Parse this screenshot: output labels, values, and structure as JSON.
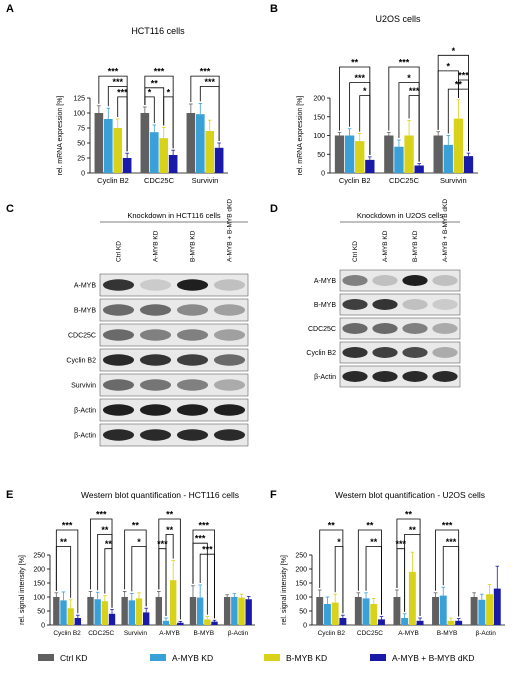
{
  "colors": {
    "ctrl": "#606060",
    "amyb": "#3aa0d8",
    "bmyb": "#d8d21a",
    "dkd": "#1a1aa8"
  },
  "legend": [
    {
      "label": "Ctrl KD",
      "color": "#606060"
    },
    {
      "label": "A-MYB KD",
      "color": "#3aa0d8"
    },
    {
      "label": "B-MYB KD",
      "color": "#d8d21a"
    },
    {
      "label": "A-MYB + B-MYB dKD",
      "color": "#1a1aa8"
    }
  ],
  "chart_data": [
    {
      "panel": "A",
      "type": "bar",
      "title": "HCT116 cells",
      "ylabel": "rel. mRNA expression [%]",
      "ylim": [
        0,
        125
      ],
      "yticks": [
        0,
        25,
        50,
        75,
        100,
        125
      ],
      "categories": [
        "Cyclin B2",
        "CDC25C",
        "Survivin"
      ],
      "series": [
        {
          "name": "Ctrl KD",
          "values": [
            100,
            100,
            100
          ],
          "errors": [
            12,
            10,
            15
          ]
        },
        {
          "name": "A-MYB KD",
          "values": [
            90,
            68,
            98
          ],
          "errors": [
            18,
            12,
            18
          ]
        },
        {
          "name": "B-MYB KD",
          "values": [
            75,
            58,
            70
          ],
          "errors": [
            15,
            18,
            18
          ]
        },
        {
          "name": "A-MYB + B-MYB dKD",
          "values": [
            25,
            30,
            42
          ],
          "errors": [
            8,
            8,
            8
          ]
        }
      ],
      "significance": [
        "***",
        "***",
        "***",
        "***",
        "**",
        "*",
        "*",
        "***",
        "***"
      ]
    },
    {
      "panel": "B",
      "type": "bar",
      "title": "U2OS cells",
      "ylabel": "rel. mRNA expression [%]",
      "ylim": [
        0,
        200
      ],
      "yticks": [
        0,
        50,
        100,
        150,
        200
      ],
      "categories": [
        "Cyclin B2",
        "CDC25C",
        "Survivin"
      ],
      "series": [
        {
          "name": "Ctrl KD",
          "values": [
            100,
            100,
            100
          ],
          "errors": [
            8,
            8,
            10
          ]
        },
        {
          "name": "A-MYB KD",
          "values": [
            100,
            70,
            75
          ],
          "errors": [
            18,
            18,
            25
          ]
        },
        {
          "name": "B-MYB KD",
          "values": [
            85,
            100,
            145
          ],
          "errors": [
            20,
            40,
            50
          ]
        },
        {
          "name": "A-MYB + B-MYB dKD",
          "values": [
            35,
            20,
            45
          ],
          "errors": [
            8,
            5,
            8
          ]
        }
      ],
      "significance": [
        "**",
        "***",
        "*",
        "***",
        "*",
        "***",
        "*",
        "*",
        "**",
        "***"
      ]
    },
    {
      "panel": "E",
      "type": "bar",
      "title": "Western blot quantification - HCT116 cells",
      "ylabel": "rel. signal intensity [%]",
      "ylim": [
        0,
        250
      ],
      "yticks": [
        0,
        50,
        100,
        150,
        200,
        250
      ],
      "categories": [
        "Cyclin B2",
        "CDC25C",
        "Survivin",
        "A-MYB",
        "B-MYB",
        "β-Actin"
      ],
      "series": [
        {
          "name": "Ctrl KD",
          "values": [
            100,
            100,
            100,
            100,
            100,
            100
          ],
          "errors": [
            15,
            20,
            20,
            20,
            40,
            8
          ]
        },
        {
          "name": "A-MYB KD",
          "values": [
            88,
            92,
            88,
            15,
            98,
            100
          ],
          "errors": [
            30,
            25,
            25,
            10,
            45,
            12
          ]
        },
        {
          "name": "B-MYB KD",
          "values": [
            60,
            85,
            95,
            160,
            20,
            98
          ],
          "errors": [
            30,
            20,
            20,
            70,
            10,
            12
          ]
        },
        {
          "name": "A-MYB + B-MYB dKD",
          "values": [
            25,
            40,
            45,
            8,
            12,
            92
          ],
          "errors": [
            10,
            15,
            15,
            5,
            5,
            10
          ]
        }
      ],
      "significance": [
        "***",
        "**",
        "***",
        "**",
        "**",
        "**",
        "*",
        "**",
        "***",
        "**",
        "***",
        "***",
        "***"
      ]
    },
    {
      "panel": "F",
      "type": "bar",
      "title": "Western blot quantification - U2OS cells",
      "ylabel": "rel. signal intensity [%]",
      "ylim": [
        0,
        250
      ],
      "yticks": [
        0,
        50,
        100,
        150,
        200,
        250
      ],
      "categories": [
        "Cyclin B2",
        "CDC25C",
        "A-MYB",
        "B-MYB",
        "β-Actin"
      ],
      "series": [
        {
          "name": "Ctrl KD",
          "values": [
            100,
            100,
            100,
            100,
            100
          ],
          "errors": [
            25,
            15,
            25,
            15,
            15
          ]
        },
        {
          "name": "A-MYB KD",
          "values": [
            75,
            95,
            25,
            105,
            90
          ],
          "errors": [
            25,
            20,
            15,
            30,
            20
          ]
        },
        {
          "name": "B-MYB KD",
          "values": [
            80,
            75,
            190,
            15,
            110
          ],
          "errors": [
            30,
            20,
            70,
            10,
            35
          ]
        },
        {
          "name": "A-MYB + B-MYB dKD",
          "values": [
            25,
            20,
            15,
            15,
            130
          ],
          "errors": [
            10,
            10,
            10,
            8,
            80
          ]
        }
      ],
      "significance": [
        "**",
        "*",
        "**",
        "**",
        "**",
        "***",
        "**",
        "***",
        "***"
      ]
    }
  ],
  "blots": {
    "C": {
      "title": "Knockdown in HCT116 cells",
      "lanes": [
        "Ctrl KD",
        "A-MYB KD",
        "B-MYB KD",
        "A-MYB + B-MYB dKD"
      ],
      "rows": [
        {
          "label": "A-MYB",
          "intensity": [
            0.85,
            0.15,
            0.95,
            0.2
          ]
        },
        {
          "label": "B-MYB",
          "intensity": [
            0.6,
            0.6,
            0.45,
            0.35
          ]
        },
        {
          "label": "CDC25C",
          "intensity": [
            0.6,
            0.5,
            0.5,
            0.35
          ]
        },
        {
          "label": "Cyclin B2",
          "intensity": [
            0.9,
            0.85,
            0.8,
            0.6
          ]
        },
        {
          "label": "Survivin",
          "intensity": [
            0.6,
            0.55,
            0.5,
            0.3
          ]
        },
        {
          "label": "β-Actin",
          "intensity": [
            0.95,
            0.95,
            0.95,
            0.95
          ]
        },
        {
          "label": "β-Actin",
          "intensity": [
            0.9,
            0.9,
            0.9,
            0.9
          ]
        }
      ]
    },
    "D": {
      "title": "Knockdown in U2OS cells",
      "lanes": [
        "Ctrl KD",
        "A-MYB KD",
        "B-MYB KD",
        "A-MYB + B-MYB dKD"
      ],
      "rows": [
        {
          "label": "A-MYB",
          "intensity": [
            0.5,
            0.2,
            0.95,
            0.2
          ]
        },
        {
          "label": "B-MYB",
          "intensity": [
            0.8,
            0.85,
            0.2,
            0.15
          ]
        },
        {
          "label": "CDC25C",
          "intensity": [
            0.6,
            0.6,
            0.5,
            0.3
          ]
        },
        {
          "label": "Cyclin B2",
          "intensity": [
            0.85,
            0.8,
            0.75,
            0.3
          ]
        },
        {
          "label": "β-Actin",
          "intensity": [
            0.9,
            0.9,
            0.9,
            0.9
          ]
        }
      ]
    }
  },
  "panel_letters": {
    "A": "A",
    "B": "B",
    "C": "C",
    "D": "D",
    "E": "E",
    "F": "F"
  }
}
